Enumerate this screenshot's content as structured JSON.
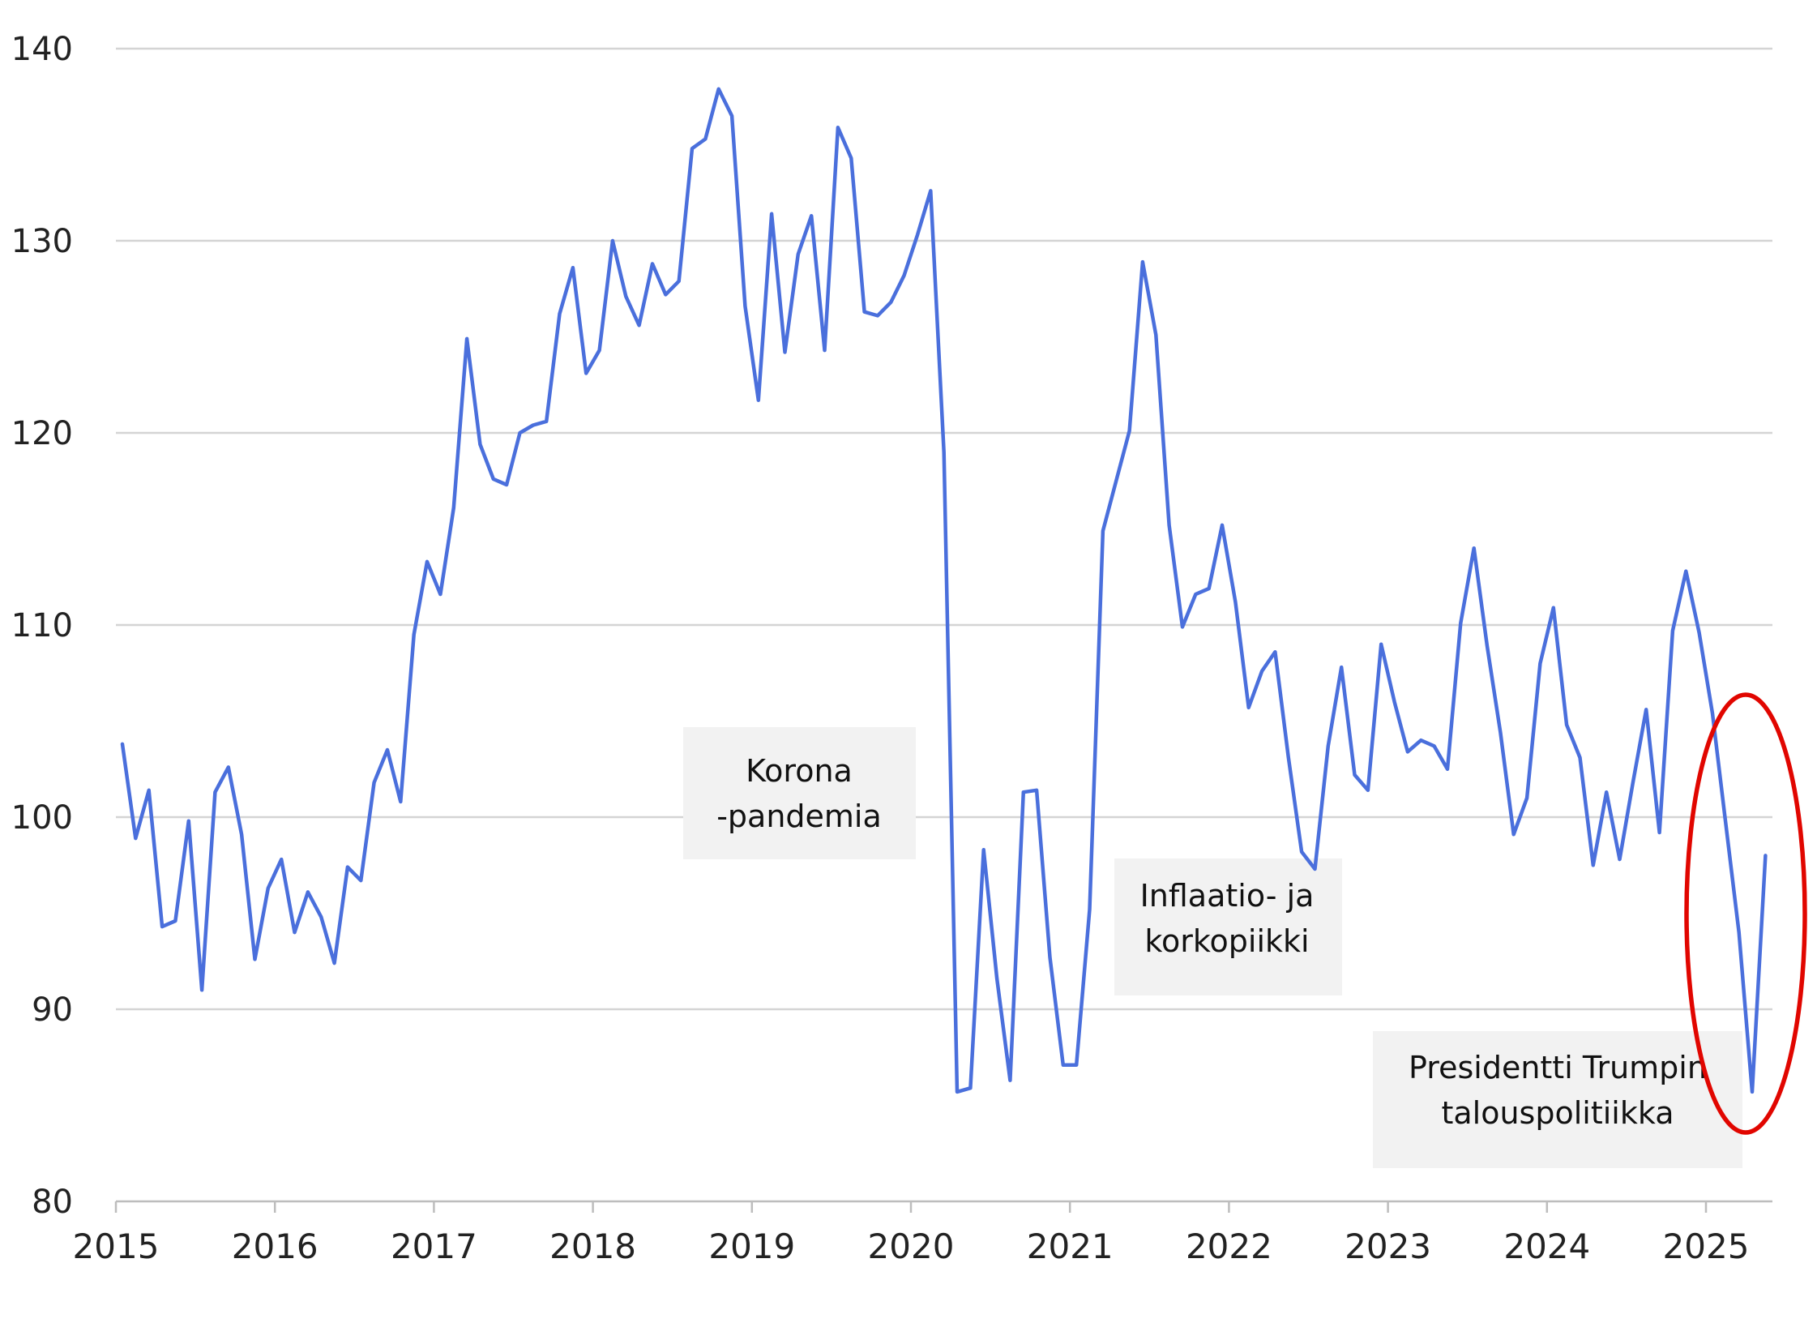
{
  "chart_data": {
    "type": "line",
    "title": "",
    "xlabel": "",
    "ylabel": "",
    "ylim": [
      80,
      140
    ],
    "y_ticks": [
      80,
      90,
      100,
      110,
      120,
      130,
      140
    ],
    "x_tick_labels": [
      "2015",
      "2016",
      "2017",
      "2018",
      "2019",
      "2020",
      "2021",
      "2022",
      "2023",
      "2024",
      "2025"
    ],
    "grid": true,
    "legend": "none",
    "series_color": "#4a6fdc",
    "highlight_color": "#e10600",
    "x": [
      "2015-01",
      "2015-02",
      "2015-03",
      "2015-04",
      "2015-05",
      "2015-06",
      "2015-07",
      "2015-08",
      "2015-09",
      "2015-10",
      "2015-11",
      "2015-12",
      "2016-01",
      "2016-02",
      "2016-03",
      "2016-04",
      "2016-05",
      "2016-06",
      "2016-07",
      "2016-08",
      "2016-09",
      "2016-10",
      "2016-11",
      "2016-12",
      "2017-01",
      "2017-02",
      "2017-03",
      "2017-04",
      "2017-05",
      "2017-06",
      "2017-07",
      "2017-08",
      "2017-09",
      "2017-10",
      "2017-11",
      "2017-12",
      "2018-01",
      "2018-02",
      "2018-03",
      "2018-04",
      "2018-05",
      "2018-06",
      "2018-07",
      "2018-08",
      "2018-09",
      "2018-10",
      "2018-11",
      "2018-12",
      "2019-01",
      "2019-02",
      "2019-03",
      "2019-04",
      "2019-05",
      "2019-06",
      "2019-07",
      "2019-08",
      "2019-09",
      "2019-10",
      "2019-11",
      "2019-12",
      "2020-01",
      "2020-02",
      "2020-03",
      "2020-04",
      "2020-05",
      "2020-06",
      "2020-07",
      "2020-08",
      "2020-09",
      "2020-10",
      "2020-11",
      "2020-12",
      "2021-01",
      "2021-02",
      "2021-03",
      "2021-04",
      "2021-05",
      "2021-06",
      "2021-07",
      "2021-08",
      "2021-09",
      "2021-10",
      "2021-11",
      "2021-12",
      "2022-01",
      "2022-02",
      "2022-03",
      "2022-04",
      "2022-05",
      "2022-06",
      "2022-07",
      "2022-08",
      "2022-09",
      "2022-10",
      "2022-11",
      "2022-12",
      "2023-01",
      "2023-02",
      "2023-03",
      "2023-04",
      "2023-05",
      "2023-06",
      "2023-07",
      "2023-08",
      "2023-09",
      "2023-10",
      "2023-11",
      "2023-12",
      "2024-01",
      "2024-02",
      "2024-03",
      "2024-04",
      "2024-05",
      "2024-06",
      "2024-07",
      "2024-08",
      "2024-09",
      "2024-10",
      "2024-11",
      "2024-12",
      "2025-01",
      "2025-02",
      "2025-03",
      "2025-04",
      "2025-05"
    ],
    "series": [
      {
        "values": [
          103.8,
          98.9,
          101.4,
          94.3,
          94.6,
          99.8,
          91.0,
          101.3,
          102.6,
          99.1,
          92.6,
          96.3,
          97.8,
          94.0,
          96.1,
          94.8,
          92.4,
          97.4,
          96.7,
          101.8,
          103.5,
          100.8,
          109.5,
          113.3,
          111.6,
          116.1,
          124.9,
          119.4,
          117.6,
          117.3,
          120.0,
          120.4,
          120.6,
          126.2,
          128.6,
          123.1,
          124.3,
          130.0,
          127.1,
          125.6,
          128.8,
          127.2,
          127.9,
          134.8,
          135.3,
          137.9,
          136.5,
          126.6,
          121.7,
          131.4,
          124.2,
          129.3,
          131.3,
          124.3,
          135.9,
          134.3,
          126.3,
          126.1,
          126.8,
          128.2,
          130.3,
          132.6,
          119.0,
          85.7,
          85.9,
          98.3,
          91.6,
          86.3,
          101.3,
          101.4,
          92.7,
          87.1,
          87.1,
          95.2,
          114.9,
          117.5,
          120.1,
          128.9,
          125.1,
          115.2,
          109.9,
          111.6,
          111.9,
          115.2,
          111.2,
          105.7,
          107.6,
          108.6,
          103.1,
          98.2,
          97.3,
          103.7,
          107.8,
          102.2,
          101.4,
          109.0,
          106.0,
          103.4,
          104.0,
          103.7,
          102.5,
          110.1,
          114.0,
          108.9,
          104.4,
          99.1,
          101.0,
          108.0,
          110.9,
          104.8,
          103.1,
          97.5,
          101.3,
          97.8,
          101.8,
          105.6,
          99.2,
          109.7,
          112.8,
          109.6,
          105.4,
          99.7,
          94.0,
          85.7,
          98.0
        ]
      }
    ],
    "annotations": [
      {
        "lines": [
          "Korona",
          "-pandemia"
        ]
      },
      {
        "lines": [
          "Inflaatio- ja",
          "korkopiikki"
        ]
      },
      {
        "lines": [
          "Presidentti Trumpin",
          "talouspolitiikka"
        ]
      }
    ]
  }
}
